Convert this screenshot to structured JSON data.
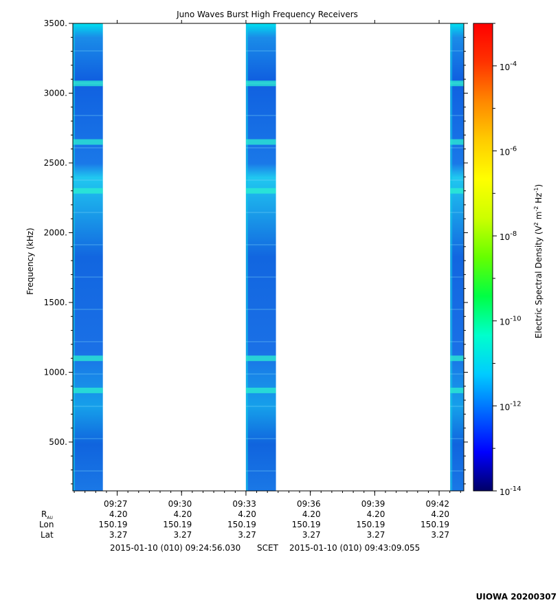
{
  "chart_data": {
    "type": "heatmap",
    "title": "Juno Waves Burst High Frequency Receivers",
    "ylabel": "Frequency (kHz)",
    "ylim": [
      150,
      3500
    ],
    "yticks": [
      500,
      1000,
      1500,
      2000,
      2500,
      3000,
      3500
    ],
    "ytick_labels": [
      "500.",
      "1000.",
      "1500.",
      "2000.",
      "2500.",
      "3000.",
      "3500."
    ],
    "x_time_range": [
      "09:24:56.030",
      "09:43:09.055"
    ],
    "xticks": [
      "09:27",
      "09:30",
      "09:33",
      "09:36",
      "09:39",
      "09:42"
    ],
    "xticks_seconds_after_0900": [
      1620,
      1800,
      1980,
      2160,
      2340,
      2520
    ],
    "bursts": [
      {
        "start": "09:24:56",
        "end": "09:26:20"
      },
      {
        "start": "09:33:00",
        "end": "09:34:24"
      },
      {
        "start": "09:42:31",
        "end": "09:43:09"
      }
    ],
    "enhanced_bands_khz": [
      870,
      1100,
      2300,
      2650,
      3070
    ],
    "colorbar": {
      "label": "Electric Spectral Density (V² m⁻² Hz⁻¹)",
      "label_main": "Electric Spectral Density (V",
      "log_scale": true,
      "range": [
        1e-14,
        0.001
      ],
      "ticks": [
        {
          "exp": -4,
          "mant": "10",
          "sup": "-4"
        },
        {
          "exp": -6,
          "mant": "10",
          "sup": "-6"
        },
        {
          "exp": -8,
          "mant": "10",
          "sup": "-8"
        },
        {
          "exp": -10,
          "mant": "10",
          "sup": "-10"
        },
        {
          "exp": -12,
          "mant": "10",
          "sup": "-12"
        },
        {
          "exp": -14,
          "mant": "10",
          "sup": "-14"
        }
      ],
      "colors": [
        "#000066",
        "#0000ff",
        "#0066ff",
        "#00ccff",
        "#00ffcc",
        "#00ff44",
        "#66ff00",
        "#ccff00",
        "#ffff00",
        "#ffcc00",
        "#ff8800",
        "#ff3300",
        "#ff0000"
      ]
    },
    "ephemeris": {
      "row_labels": {
        "r": "R",
        "r_sub": "AU",
        "lon": "Lon",
        "lat": "Lat"
      },
      "r": [
        "4.20",
        "4.20",
        "4.20",
        "4.20",
        "4.20",
        "4.20"
      ],
      "lon": [
        "150.19",
        "150.19",
        "150.19",
        "150.19",
        "150.19",
        "150.19"
      ],
      "lat": [
        "3.27",
        "3.27",
        "3.27",
        "3.27",
        "3.27",
        "3.27"
      ]
    },
    "time_range_label": {
      "start": "2015-01-10 (010) 09:24:56.030",
      "middle": "SCET",
      "end": "2015-01-10 (010) 09:43:09.055"
    },
    "footer_tag": "UIOWA 20200307"
  }
}
